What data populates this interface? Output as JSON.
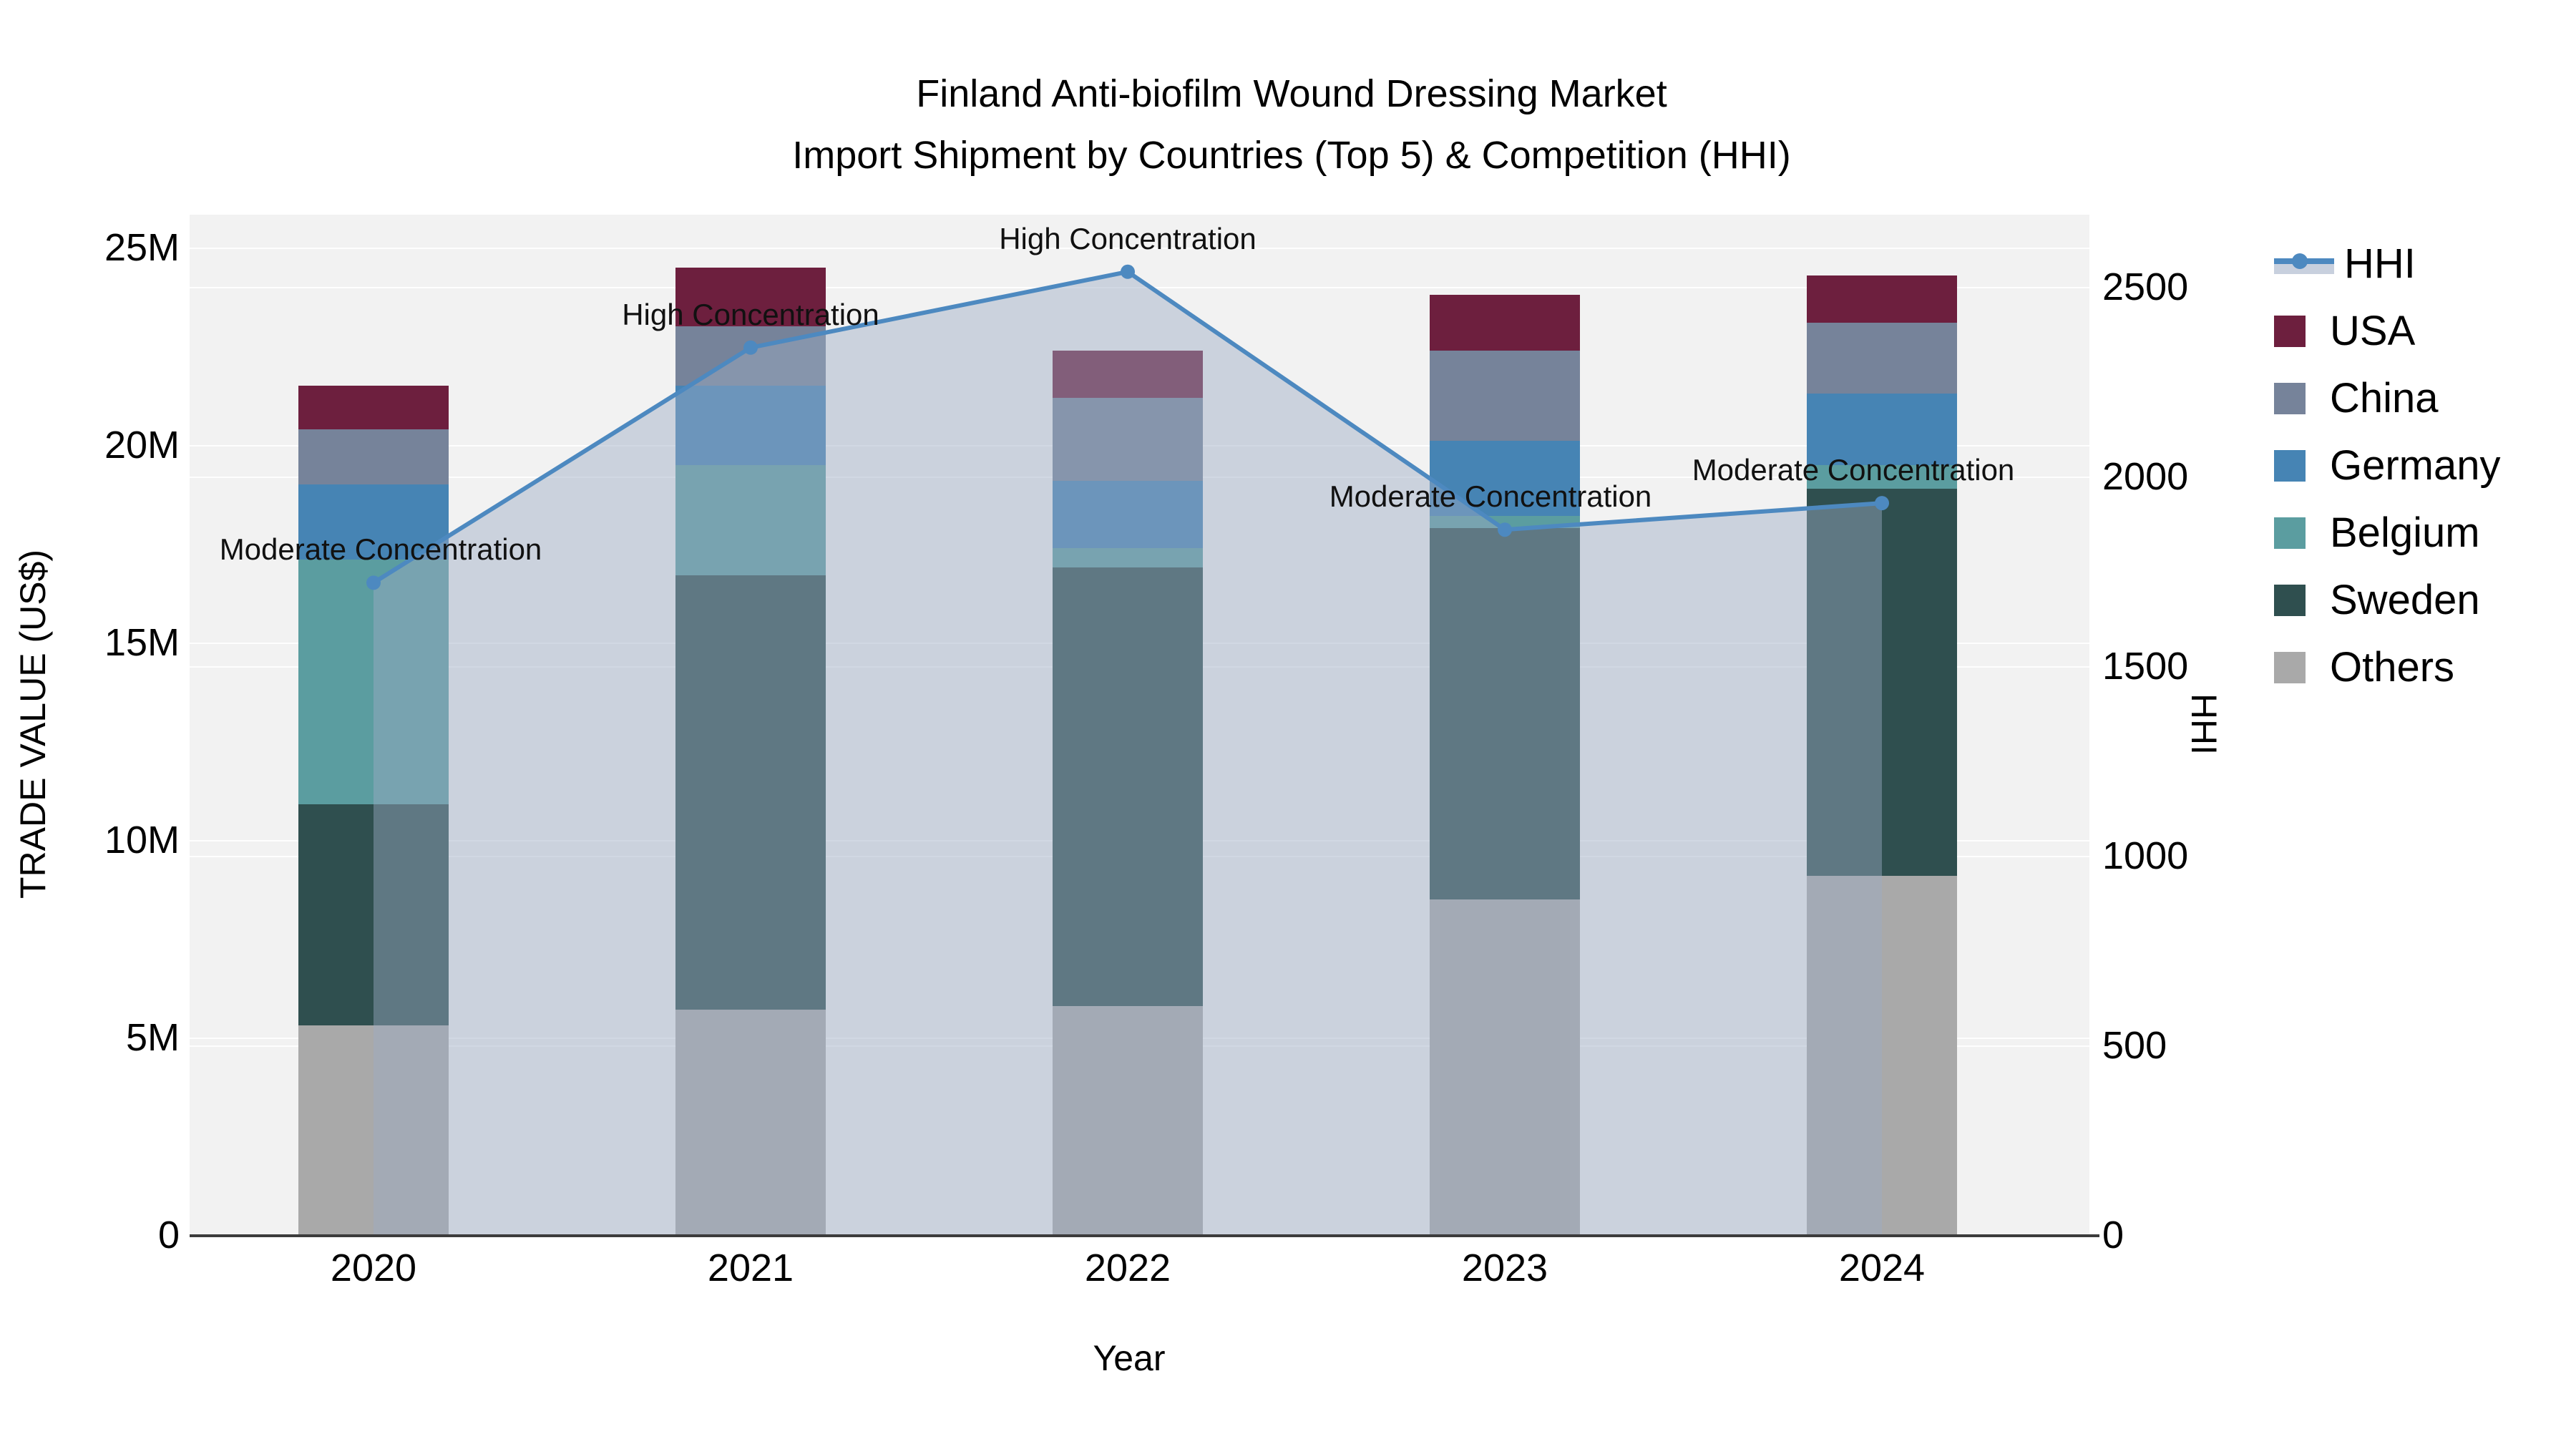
{
  "title": {
    "line1": "Finland Anti-biofilm Wound Dressing Market",
    "line2": "Import Shipment by Countries (Top 5) & Competition (HHI)"
  },
  "axes": {
    "y_left": {
      "title": "TRADE VALUE (US$)",
      "tick_labels": [
        "0",
        "5M",
        "10M",
        "15M",
        "20M",
        "25M"
      ],
      "tick_values_millions": [
        0,
        5,
        10,
        15,
        20,
        25
      ],
      "range_millions": [
        0,
        25.8
      ]
    },
    "y_right": {
      "title": "HHI",
      "tick_labels": [
        "0",
        "500",
        "1000",
        "1500",
        "2000",
        "2500"
      ],
      "tick_values": [
        0,
        500,
        1000,
        1500,
        2000,
        2500
      ],
      "range": [
        0,
        2690
      ]
    },
    "x": {
      "title": "Year",
      "categories": [
        "2020",
        "2021",
        "2022",
        "2023",
        "2024"
      ]
    }
  },
  "chart_data": {
    "type": "bar",
    "subtype": "stacked-bars-with-line-overlay",
    "categories": [
      "2020",
      "2021",
      "2022",
      "2023",
      "2024"
    ],
    "value_unit": "million US$",
    "stack_order_bottom_to_top": [
      "Others",
      "Sweden",
      "Belgium",
      "Germany",
      "China",
      "USA"
    ],
    "series": [
      {
        "name": "USA",
        "color": "#6d1f3e",
        "values": [
          1.1,
          1.5,
          1.2,
          1.4,
          1.2
        ]
      },
      {
        "name": "China",
        "color": "#76839a",
        "values": [
          1.4,
          1.5,
          2.1,
          2.3,
          1.8
        ]
      },
      {
        "name": "Germany",
        "color": "#4684b4",
        "values": [
          1.9,
          2.0,
          1.7,
          1.9,
          1.8
        ]
      },
      {
        "name": "Belgium",
        "color": "#5b9da0",
        "values": [
          6.2,
          2.8,
          0.5,
          0.3,
          0.6
        ]
      },
      {
        "name": "Sweden",
        "color": "#2f4f4f",
        "values": [
          5.6,
          11.0,
          11.1,
          9.4,
          9.8
        ]
      },
      {
        "name": "Others",
        "color": "#a9a9a9",
        "values": [
          5.3,
          5.7,
          5.8,
          8.5,
          9.1
        ]
      }
    ],
    "bar_totals_millions": [
      21.5,
      24.5,
      22.4,
      23.8,
      24.3
    ],
    "line_series": {
      "name": "HHI",
      "axis": "right",
      "color": "#4d89c0",
      "area_fill_color": "rgba(155,170,195,0.45)",
      "values": [
        1720,
        2340,
        2540,
        1860,
        1930
      ]
    },
    "annotations": [
      {
        "category": "2020",
        "text": "Moderate Concentration"
      },
      {
        "category": "2021",
        "text": "High Concentration"
      },
      {
        "category": "2022",
        "text": "High Concentration"
      },
      {
        "category": "2023",
        "text": "Moderate Concentration"
      },
      {
        "category": "2024",
        "text": "Moderate Concentration"
      }
    ],
    "legend_position": "right",
    "grid": true
  },
  "legend": {
    "items": [
      {
        "label": "HHI",
        "type": "line",
        "color": "#4d89c0"
      },
      {
        "label": "USA",
        "type": "square",
        "color": "#6d1f3e"
      },
      {
        "label": "China",
        "type": "square",
        "color": "#76839a"
      },
      {
        "label": "Germany",
        "type": "square",
        "color": "#4684b4"
      },
      {
        "label": "Belgium",
        "type": "square",
        "color": "#5b9da0"
      },
      {
        "label": "Sweden",
        "type": "square",
        "color": "#2f4f4f"
      },
      {
        "label": "Others",
        "type": "square",
        "color": "#a9a9a9"
      }
    ]
  },
  "colors": {
    "figure_bg": "#ffffff",
    "plot_bg": "#f2f2f2",
    "gridline": "rgba(255,255,255,0.92)",
    "axis_line": "#3c3c3c",
    "text": "#000000"
  }
}
